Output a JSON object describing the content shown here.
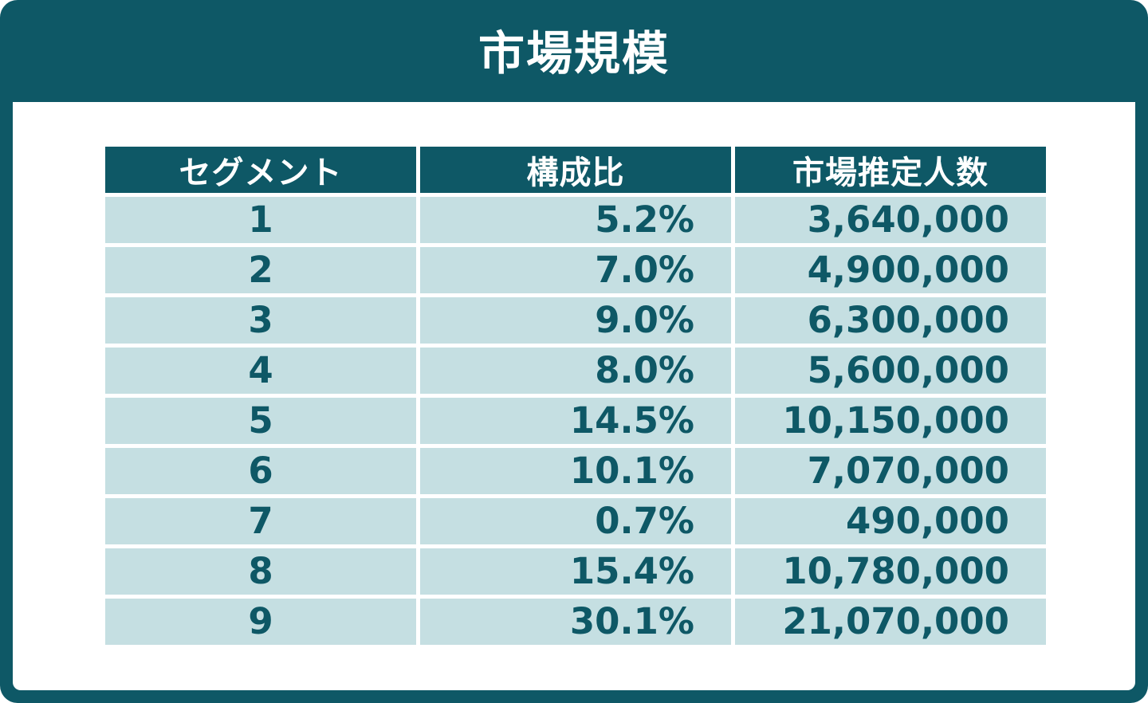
{
  "title": "市場規模",
  "colors": {
    "header_bg": "#0e5866",
    "cell_bg": "#c5dfe2",
    "text": "#0e5866",
    "header_text": "#ffffff"
  },
  "chart_data": {
    "type": "table",
    "title": "市場規模",
    "columns": [
      "セグメント",
      "構成比",
      "市場推定人数"
    ],
    "rows": [
      [
        "1",
        "5.2%",
        "3,640,000"
      ],
      [
        "2",
        "7.0%",
        "4,900,000"
      ],
      [
        "3",
        "9.0%",
        "6,300,000"
      ],
      [
        "4",
        "8.0%",
        "5,600,000"
      ],
      [
        "5",
        "14.5%",
        "10,150,000"
      ],
      [
        "6",
        "10.1%",
        "7,070,000"
      ],
      [
        "7",
        "0.7%",
        "490,000"
      ],
      [
        "8",
        "15.4%",
        "10,780,000"
      ],
      [
        "9",
        "30.1%",
        "21,070,000"
      ]
    ]
  }
}
